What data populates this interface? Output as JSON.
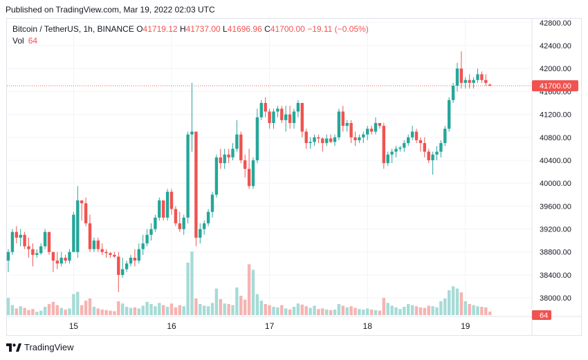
{
  "header": {
    "published_text": "Published on TradingView.com, Mar 19, 2022 02:03 UTC"
  },
  "legend": {
    "symbol": "Bitcoin / TetherUS, 1h, BINANCE",
    "o_label": "O",
    "o_value": "41719.12",
    "h_label": "H",
    "h_value": "41737.00",
    "l_label": "L",
    "l_value": "41696.96",
    "c_label": "C",
    "c_value": "41700.00",
    "change": "−19.11 (−0.05%)",
    "vol_label": "Vol",
    "vol_value": "64"
  },
  "footer": {
    "brand": "TradingView"
  },
  "colors": {
    "up": "#26a69a",
    "down": "#ef5350",
    "up_vol": "#a6dbd6",
    "down_vol": "#f6b3b1"
  },
  "chart_data": {
    "type": "candlestick",
    "y_axis": {
      "min": 37700,
      "max": 42870,
      "ticks": [
        "42800.00",
        "42400.00",
        "42000.00",
        "41600.00",
        "41200.00",
        "40800.00",
        "40400.00",
        "40000.00",
        "39600.00",
        "39200.00",
        "38800.00",
        "38400.00",
        "38000.00"
      ]
    },
    "x_axis": {
      "tick_labels": [
        "15",
        "16",
        "17",
        "18",
        "19"
      ],
      "tick_hours": [
        16,
        40,
        64,
        88,
        112
      ]
    },
    "last_price": "41700.00",
    "last_volume": "64",
    "candles": [
      [
        0,
        38650,
        38850,
        38450,
        38800,
        310
      ],
      [
        1,
        38800,
        39200,
        38750,
        39150,
        180
      ],
      [
        2,
        39150,
        39250,
        38950,
        39050,
        120
      ],
      [
        3,
        39050,
        39200,
        38900,
        39100,
        160
      ],
      [
        4,
        39100,
        39150,
        38850,
        38900,
        130
      ],
      [
        5,
        38900,
        39050,
        38700,
        38850,
        90
      ],
      [
        6,
        38850,
        38950,
        38550,
        38750,
        110
      ],
      [
        7,
        38750,
        38850,
        38700,
        38780,
        60
      ],
      [
        8,
        38780,
        38950,
        38750,
        38900,
        80
      ],
      [
        9,
        38900,
        39200,
        38850,
        39150,
        150
      ],
      [
        10,
        39150,
        39150,
        38750,
        38800,
        200
      ],
      [
        11,
        38800,
        38800,
        38450,
        38650,
        240
      ],
      [
        12,
        38650,
        38800,
        38500,
        38600,
        180
      ],
      [
        13,
        38600,
        38800,
        38550,
        38700,
        130
      ],
      [
        14,
        38700,
        38750,
        38600,
        38650,
        100
      ],
      [
        15,
        38650,
        38850,
        38600,
        38800,
        120
      ],
      [
        16,
        38800,
        39500,
        38800,
        39450,
        380
      ],
      [
        17,
        38800,
        39950,
        38700,
        39700,
        420
      ],
      [
        18,
        39700,
        39700,
        39350,
        39650,
        180
      ],
      [
        19,
        39650,
        39750,
        39250,
        39300,
        260
      ],
      [
        20,
        39300,
        39450,
        38800,
        38850,
        300
      ],
      [
        21,
        38850,
        39050,
        38800,
        39000,
        150
      ],
      [
        22,
        39000,
        39050,
        38800,
        38850,
        120
      ],
      [
        23,
        38850,
        38950,
        38750,
        38800,
        100
      ],
      [
        24,
        38800,
        38850,
        38700,
        38780,
        90
      ],
      [
        25,
        38780,
        38800,
        38700,
        38750,
        80
      ],
      [
        26,
        38750,
        38800,
        38700,
        38720,
        70
      ],
      [
        27,
        38720,
        38800,
        38100,
        38400,
        250
      ],
      [
        28,
        38400,
        38700,
        38350,
        38500,
        210
      ],
      [
        29,
        38500,
        38650,
        38450,
        38600,
        150
      ],
      [
        30,
        38600,
        38750,
        38550,
        38700,
        130
      ],
      [
        31,
        38700,
        38850,
        38550,
        38650,
        140
      ],
      [
        32,
        38650,
        38950,
        38600,
        38850,
        120
      ],
      [
        33,
        38850,
        39100,
        38750,
        38950,
        170
      ],
      [
        34,
        38950,
        39200,
        38900,
        39100,
        240
      ],
      [
        35,
        39100,
        39300,
        39000,
        39200,
        200
      ],
      [
        36,
        39200,
        39450,
        39150,
        39400,
        160
      ],
      [
        37,
        39400,
        39750,
        39350,
        39700,
        220
      ],
      [
        38,
        39700,
        39700,
        39350,
        39400,
        180
      ],
      [
        39,
        39400,
        39900,
        39350,
        39850,
        150
      ],
      [
        40,
        39850,
        39900,
        39450,
        39550,
        210
      ],
      [
        41,
        39550,
        39600,
        39250,
        39300,
        140
      ],
      [
        42,
        39300,
        39500,
        39150,
        39200,
        180
      ],
      [
        43,
        39200,
        39450,
        39100,
        39400,
        160
      ],
      [
        44,
        39400,
        40900,
        39300,
        40850,
        950
      ],
      [
        45,
        40850,
        41750,
        40550,
        40900,
        1150
      ],
      [
        46,
        40900,
        40900,
        38900,
        39050,
        300
      ],
      [
        47,
        39050,
        39300,
        38950,
        39200,
        200
      ],
      [
        48,
        39200,
        39350,
        39100,
        39300,
        170
      ],
      [
        49,
        39300,
        39550,
        39250,
        39500,
        160
      ],
      [
        50,
        39500,
        39850,
        39400,
        39800,
        220
      ],
      [
        51,
        39800,
        40500,
        39750,
        40450,
        480
      ],
      [
        52,
        40450,
        40600,
        40250,
        40350,
        290
      ],
      [
        53,
        40350,
        40600,
        40250,
        40500,
        210
      ],
      [
        54,
        40500,
        40600,
        40350,
        40450,
        200
      ],
      [
        55,
        40450,
        40700,
        40400,
        40600,
        180
      ],
      [
        56,
        40600,
        41100,
        40550,
        40850,
        500
      ],
      [
        57,
        40850,
        40900,
        40350,
        40400,
        350
      ],
      [
        58,
        40400,
        40500,
        40100,
        40250,
        280
      ],
      [
        59,
        40250,
        40600,
        39900,
        39950,
        920
      ],
      [
        60,
        39950,
        40450,
        39900,
        40400,
        820
      ],
      [
        61,
        40400,
        41300,
        40350,
        41150,
        380
      ],
      [
        62,
        41150,
        41450,
        41100,
        41400,
        260
      ],
      [
        63,
        41400,
        41500,
        41150,
        41250,
        200
      ],
      [
        64,
        41250,
        41300,
        40950,
        41050,
        180
      ],
      [
        65,
        41050,
        41300,
        40950,
        41250,
        150
      ],
      [
        66,
        41250,
        41350,
        41150,
        41300,
        140
      ],
      [
        67,
        41300,
        41350,
        41050,
        41100,
        180
      ],
      [
        68,
        41100,
        41350,
        40900,
        41200,
        120
      ],
      [
        69,
        41200,
        41350,
        40950,
        41050,
        100
      ],
      [
        70,
        41050,
        41300,
        40950,
        41250,
        150
      ],
      [
        71,
        41250,
        41450,
        41150,
        41400,
        210
      ],
      [
        72,
        41400,
        41400,
        40800,
        40900,
        190
      ],
      [
        73,
        40900,
        40950,
        40600,
        40700,
        160
      ],
      [
        74,
        40700,
        40800,
        40600,
        40720,
        130
      ],
      [
        75,
        40720,
        40850,
        40650,
        40800,
        170
      ],
      [
        76,
        40800,
        40850,
        40700,
        40780,
        110
      ],
      [
        77,
        40780,
        40800,
        40550,
        40700,
        120
      ],
      [
        78,
        40700,
        40850,
        40650,
        40780,
        100
      ],
      [
        79,
        40780,
        40850,
        40700,
        40720,
        90
      ],
      [
        80,
        40720,
        40850,
        40650,
        40800,
        100
      ],
      [
        81,
        40800,
        41300,
        40750,
        41250,
        200
      ],
      [
        82,
        41250,
        41350,
        40900,
        41000,
        170
      ],
      [
        83,
        41000,
        41100,
        40900,
        41050,
        140
      ],
      [
        84,
        41050,
        41100,
        40700,
        40800,
        160
      ],
      [
        85,
        40800,
        40900,
        40650,
        40750,
        130
      ],
      [
        86,
        40750,
        40850,
        40700,
        40800,
        110
      ],
      [
        87,
        40800,
        40900,
        40700,
        40850,
        100
      ],
      [
        88,
        40850,
        41000,
        40750,
        40950,
        120
      ],
      [
        89,
        40950,
        41000,
        40850,
        40900,
        100
      ],
      [
        90,
        40900,
        41150,
        40850,
        41050,
        90
      ],
      [
        91,
        41050,
        41050,
        40950,
        41000,
        80
      ],
      [
        92,
        41000,
        41050,
        40250,
        40350,
        310
      ],
      [
        93,
        40350,
        40550,
        40300,
        40500,
        220
      ],
      [
        94,
        40500,
        40600,
        40350,
        40550,
        170
      ],
      [
        95,
        40550,
        40650,
        40450,
        40600,
        140
      ],
      [
        96,
        40600,
        40650,
        40550,
        40620,
        110
      ],
      [
        97,
        40620,
        40750,
        40550,
        40700,
        150
      ],
      [
        98,
        40700,
        40850,
        40650,
        40800,
        200
      ],
      [
        99,
        40800,
        41000,
        40750,
        40900,
        180
      ],
      [
        100,
        40900,
        40950,
        40700,
        40750,
        160
      ],
      [
        101,
        40750,
        40800,
        40550,
        40700,
        140
      ],
      [
        102,
        40700,
        40800,
        40450,
        40550,
        130
      ],
      [
        103,
        40550,
        40600,
        40350,
        40400,
        170
      ],
      [
        104,
        40400,
        40550,
        40150,
        40500,
        160
      ],
      [
        105,
        40500,
        40650,
        40400,
        40550,
        140
      ],
      [
        106,
        40550,
        40750,
        40450,
        40700,
        250
      ],
      [
        107,
        40700,
        41000,
        40650,
        40950,
        300
      ],
      [
        108,
        40950,
        41500,
        40900,
        41450,
        450
      ],
      [
        109,
        41450,
        41750,
        41400,
        41700,
        520
      ],
      [
        110,
        41700,
        42100,
        41600,
        42000,
        480
      ],
      [
        111,
        42000,
        42300,
        41650,
        41750,
        410
      ],
      [
        112,
        41750,
        41850,
        41650,
        41800,
        250
      ],
      [
        113,
        41800,
        41900,
        41650,
        41750,
        200
      ],
      [
        114,
        41750,
        41850,
        41650,
        41800,
        180
      ],
      [
        115,
        41800,
        42000,
        41750,
        41900,
        160
      ],
      [
        116,
        41900,
        41950,
        41750,
        41800,
        150
      ],
      [
        117,
        41800,
        41900,
        41700,
        41750,
        140
      ],
      [
        118,
        41719.12,
        41737,
        41696.96,
        41700,
        64
      ]
    ]
  }
}
